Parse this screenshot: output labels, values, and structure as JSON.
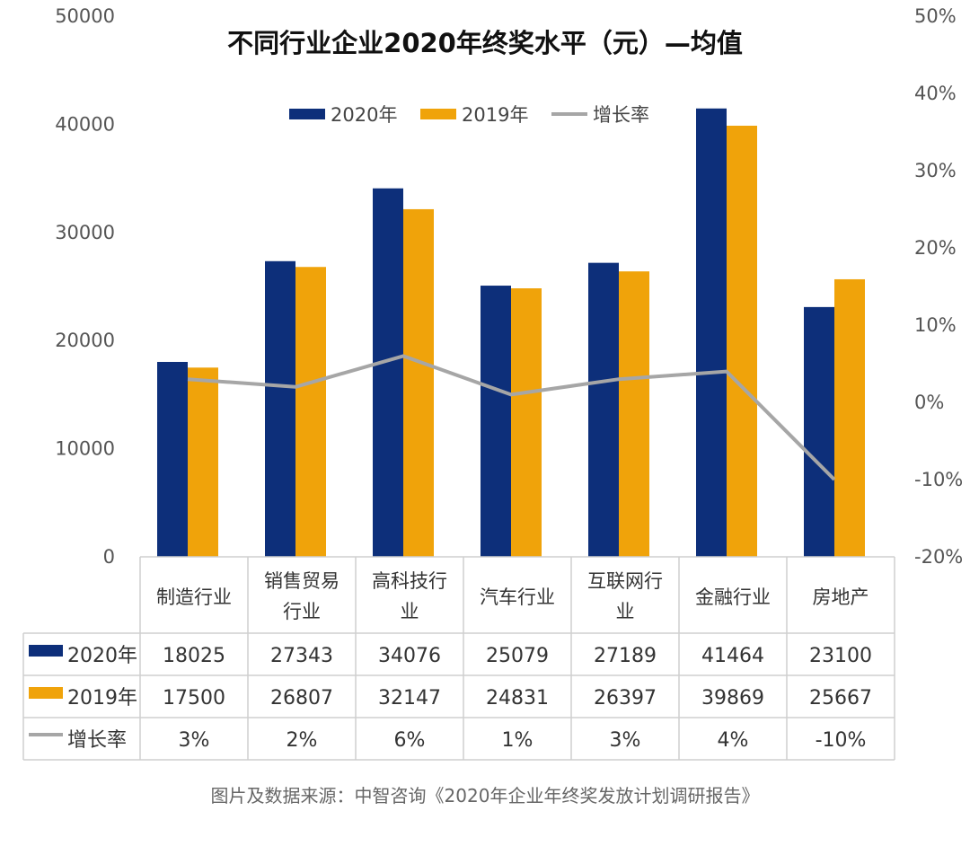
{
  "chart_data": {
    "type": "bar",
    "title": "不同行业企业2020年终奖水平（元）—均值",
    "categories": [
      [
        "制造行业"
      ],
      [
        "销售贸易",
        "行业"
      ],
      [
        "高科技行",
        "业"
      ],
      [
        "汽车行业"
      ],
      [
        "互联网行",
        "业"
      ],
      [
        "金融行业"
      ],
      [
        "房地产"
      ]
    ],
    "series": [
      {
        "name": "2020年",
        "type": "bar",
        "color": "#0d2f7a",
        "values": [
          18025,
          27343,
          34076,
          25079,
          27189,
          41464,
          23100
        ],
        "labels": [
          "18025",
          "27343",
          "34076",
          "25079",
          "27189",
          "41464",
          "23100"
        ]
      },
      {
        "name": "2019年",
        "type": "bar",
        "color": "#f0a30a",
        "values": [
          17500,
          26807,
          32147,
          24831,
          26397,
          39869,
          25667
        ],
        "labels": [
          "17500",
          "26807",
          "32147",
          "24831",
          "26397",
          "39869",
          "25667"
        ]
      },
      {
        "name": "增长率",
        "type": "line",
        "axis": "right",
        "color": "#a6a6a6",
        "values": [
          3,
          2,
          6,
          1,
          3,
          4,
          -10
        ],
        "labels": [
          "3%",
          "2%",
          "6%",
          "1%",
          "3%",
          "4%",
          "-10%"
        ]
      }
    ],
    "y_left": {
      "min": 0,
      "max": 50000,
      "ticks": [
        "0",
        "10000",
        "20000",
        "30000",
        "40000",
        "50000"
      ]
    },
    "y_right": {
      "min": -20,
      "max": 50,
      "ticks": [
        "-20%",
        "-10%",
        "0%",
        "10%",
        "20%",
        "30%",
        "40%",
        "50%"
      ]
    },
    "legend_position": "top-center",
    "data_table": true
  },
  "source": "图片及数据来源：中智咨询《2020年企业年终奖发放计划调研报告》"
}
